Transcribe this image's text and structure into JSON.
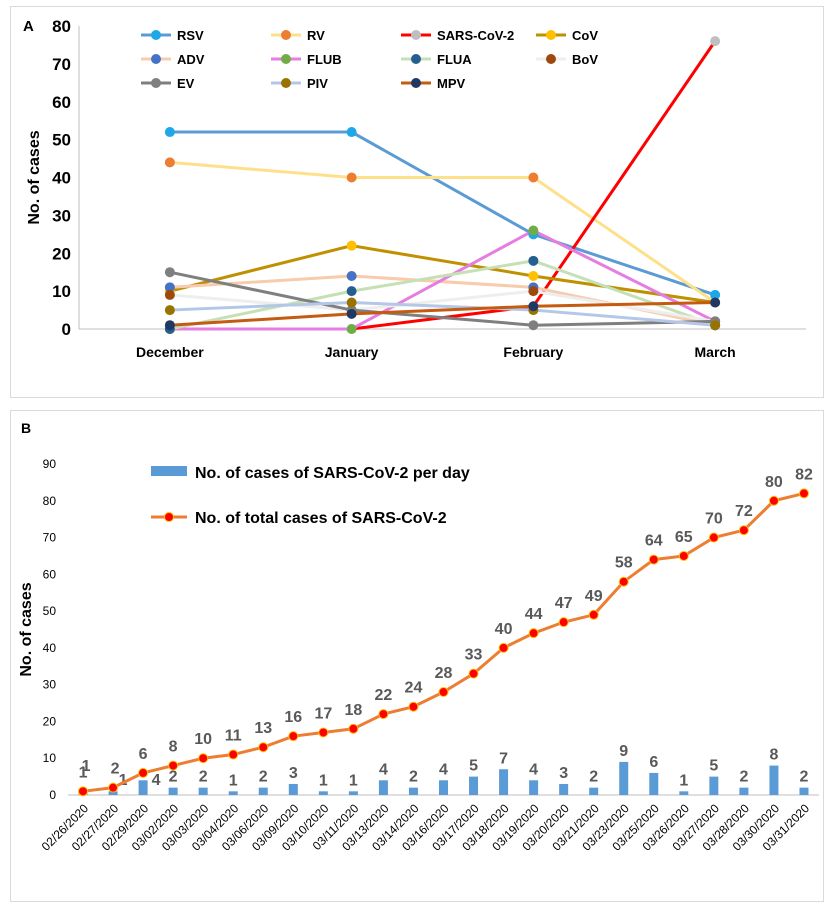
{
  "chart_data": [
    {
      "panel_label": "A",
      "type": "line",
      "categories": [
        "December",
        "January",
        "February",
        "March"
      ],
      "ylabel": "No. of cases",
      "ylim": [
        0,
        80
      ],
      "yticks": [
        0,
        10,
        20,
        30,
        40,
        50,
        60,
        70,
        80
      ],
      "grid": false,
      "legend_position": "top",
      "series": [
        {
          "name": "RSV",
          "color": "#5b9bd5",
          "marker": "#1ea8e8",
          "values": [
            52,
            52,
            25,
            9
          ]
        },
        {
          "name": "RV",
          "color": "#ffe08a",
          "marker": "#ed7d31",
          "values": [
            44,
            40,
            40,
            7
          ]
        },
        {
          "name": "SARS-CoV-2",
          "color": "#ff0000",
          "marker": "#bfbfbf",
          "values": [
            0,
            0,
            6,
            76
          ]
        },
        {
          "name": "CoV",
          "color": "#bf9000",
          "marker": "#ffc000",
          "values": [
            10,
            22,
            14,
            7
          ]
        },
        {
          "name": "ADV",
          "color": "#f8cbad",
          "marker": "#4472c4",
          "values": [
            11,
            14,
            11,
            1
          ]
        },
        {
          "name": "FLUB",
          "color": "#e67de0",
          "marker": "#70ad47",
          "values": [
            0,
            0,
            26,
            2
          ]
        },
        {
          "name": "FLUA",
          "color": "#c5e0b4",
          "marker": "#255e91",
          "values": [
            0,
            10,
            18,
            1
          ]
        },
        {
          "name": "BoV",
          "color": "#eeeeee",
          "marker": "#9e480e",
          "values": [
            9,
            5,
            10,
            2
          ]
        },
        {
          "name": "EV",
          "color": "#7f7f7f",
          "marker": "#7f7f7f",
          "values": [
            15,
            5,
            1,
            2
          ]
        },
        {
          "name": "PIV",
          "color": "#b4c7e7",
          "marker": "#997300",
          "values": [
            5,
            7,
            5,
            1
          ]
        },
        {
          "name": "MPV",
          "color": "#c55a11",
          "marker": "#203864",
          "values": [
            1,
            4,
            6,
            7
          ]
        }
      ]
    },
    {
      "panel_label": "B",
      "type": "bar+line",
      "categories": [
        "02/26/2020",
        "02/27/2020",
        "02/29/2020",
        "03/02/2020",
        "03/03/2020",
        "03/04/2020",
        "03/06/2020",
        "03/09/2020",
        "03/10/2020",
        "03/11/2020",
        "03/13/2020",
        "03/14/2020",
        "03/16/2020",
        "03/17/2020",
        "03/18/2020",
        "03/19/2020",
        "03/20/2020",
        "03/21/2020",
        "03/23/2020",
        "03/25/2020",
        "03/26/2020",
        "03/27/2020",
        "03/28/2020",
        "03/30/2020",
        "03/31/2020"
      ],
      "ylabel": "No. of cases",
      "ylim": [
        0,
        90
      ],
      "yticks": [
        0,
        10,
        20,
        30,
        40,
        50,
        60,
        70,
        80,
        90
      ],
      "grid": false,
      "legend_position": "top-left",
      "series": [
        {
          "name": "No. of cases of SARS-CoV-2 per day",
          "kind": "bar",
          "color": "#5b9bd5",
          "values": [
            1,
            1,
            4,
            2,
            2,
            1,
            2,
            3,
            1,
            1,
            4,
            2,
            4,
            5,
            7,
            4,
            3,
            2,
            9,
            6,
            1,
            5,
            2,
            8,
            2
          ]
        },
        {
          "name": "No. of total cases of SARS-CoV-2",
          "kind": "line",
          "color": "#ed7d31",
          "marker": "#ff0000",
          "values": [
            1,
            2,
            6,
            8,
            10,
            11,
            13,
            16,
            17,
            18,
            22,
            24,
            28,
            33,
            40,
            44,
            47,
            49,
            58,
            64,
            65,
            70,
            72,
            80,
            82
          ]
        }
      ]
    }
  ]
}
